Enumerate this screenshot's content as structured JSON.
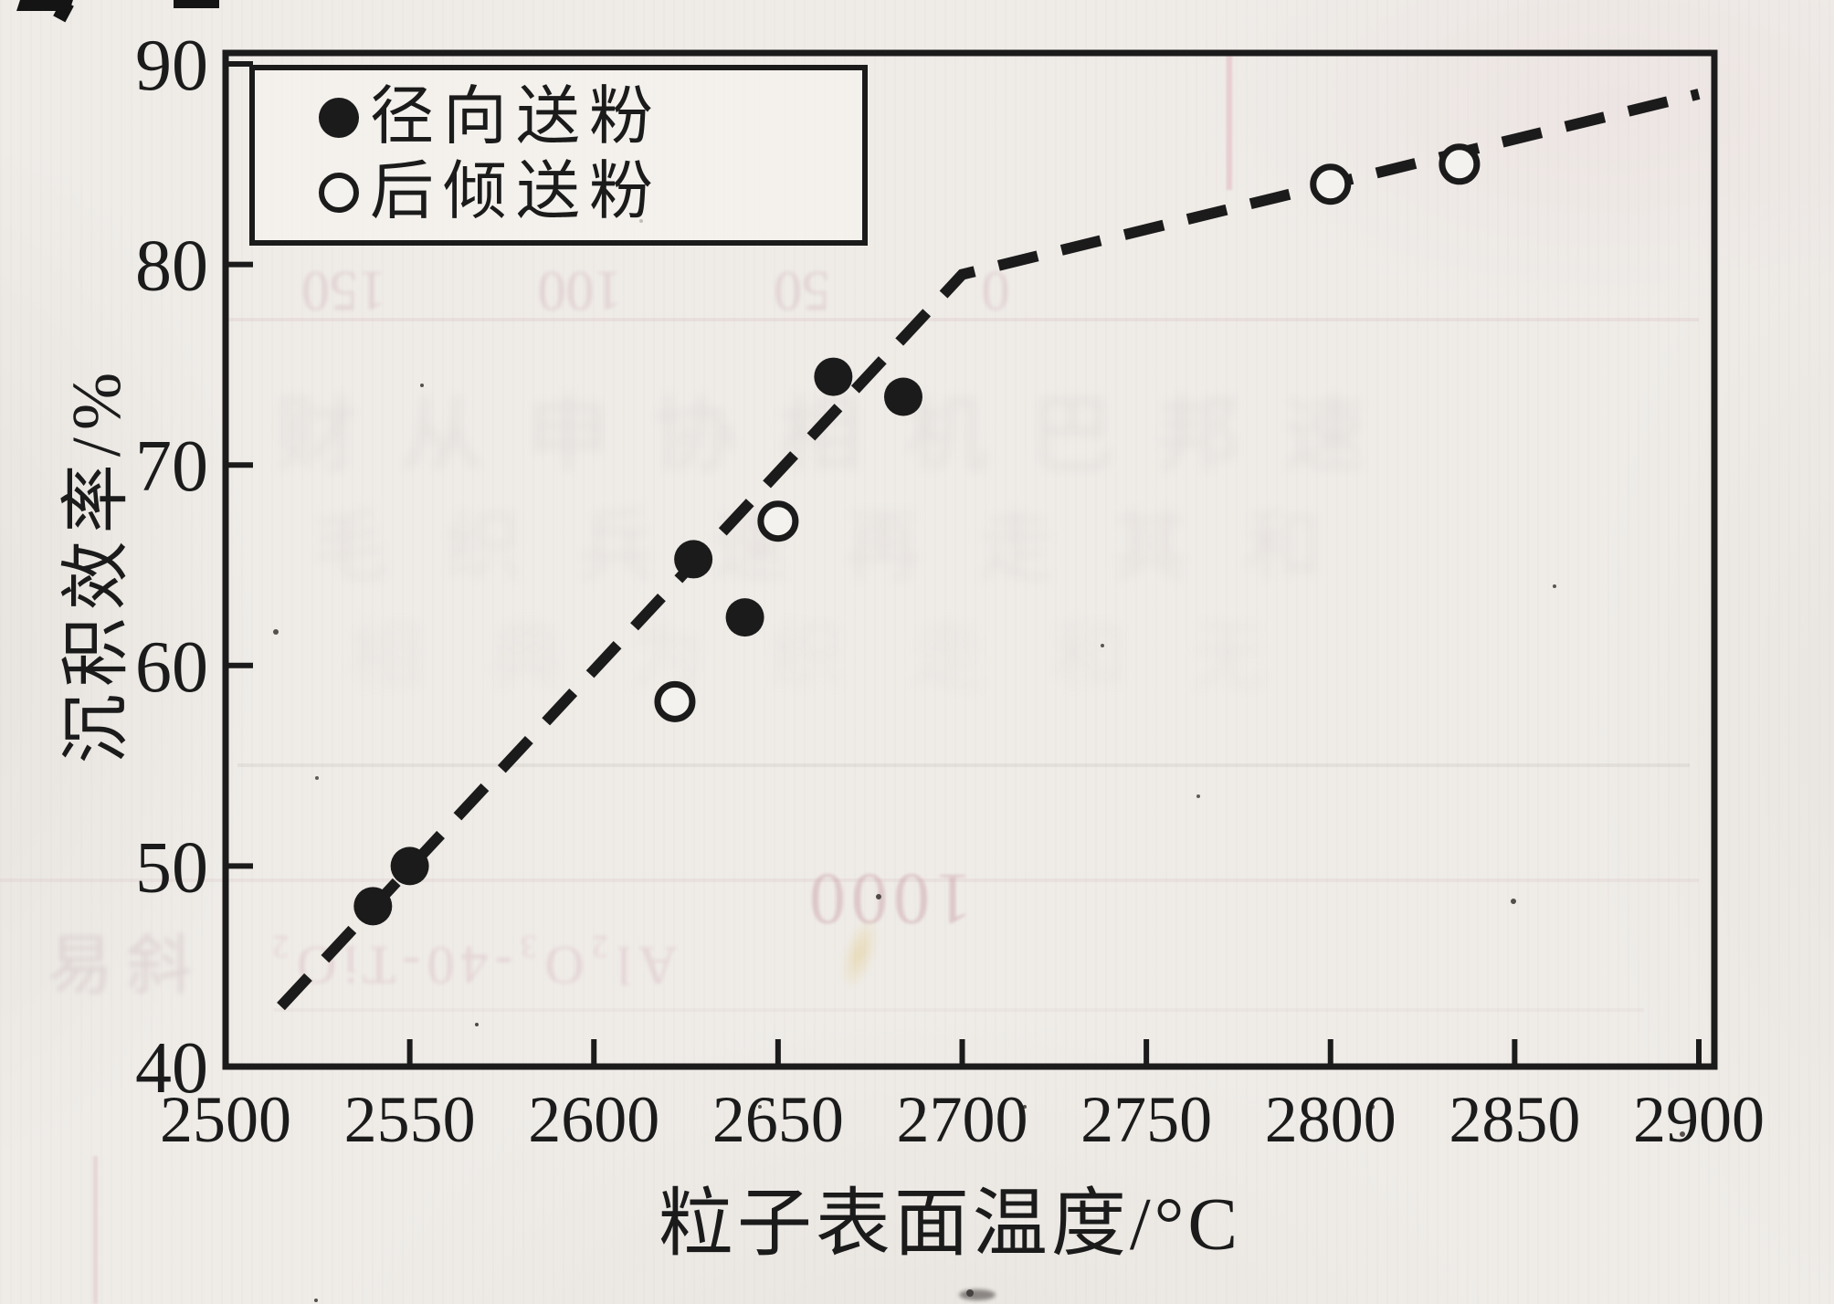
{
  "page": {
    "paper_color": "#efece8",
    "ink_color": "#1b1b1b",
    "plot_bg": "#f4f2ee"
  },
  "chart_data": {
    "type": "scatter",
    "title": "",
    "xlabel": "粒子表面温度/°C",
    "ylabel": "沉积效率/%",
    "xlim": [
      2500,
      2900
    ],
    "ylim": [
      40,
      90
    ],
    "xticks": [
      2500,
      2550,
      2600,
      2650,
      2700,
      2750,
      2800,
      2850,
      2900
    ],
    "yticks": [
      40,
      50,
      60,
      70,
      80,
      90
    ],
    "grid": false,
    "legend": {
      "position": "top-left",
      "entries": [
        {
          "label": "径向送粉",
          "marker": "filled-circle"
        },
        {
          "label": "后倾送粉",
          "marker": "open-circle"
        }
      ]
    },
    "series": [
      {
        "name": "径向送粉",
        "marker": "filled-circle",
        "points": [
          [
            2540,
            48
          ],
          [
            2550,
            50
          ],
          [
            2627,
            65.3
          ],
          [
            2641,
            62.4
          ],
          [
            2665,
            74.4
          ],
          [
            2684,
            73.4
          ]
        ]
      },
      {
        "name": "后倾送粉",
        "marker": "open-circle",
        "points": [
          [
            2622,
            58.2
          ],
          [
            2650,
            67.2
          ],
          [
            2800,
            84
          ],
          [
            2835,
            85
          ]
        ]
      }
    ],
    "trend_line": {
      "style": "dashed",
      "points": [
        [
          2515,
          43
        ],
        [
          2700,
          79.5
        ],
        [
          2900,
          88.5
        ]
      ]
    }
  },
  "artifacts": {
    "ghost_axis_row": "0 50 100 150",
    "ghost_number_1000": "1000",
    "ghost_formula": "Al₂O₃-40-TiO₂",
    "ghost_margin_glyphs": "易斜",
    "ghost_band_1": "财从申协相机巴邦速",
    "ghost_band_2": "毛织兵速再走其和",
    "ghost_band_3": "相典为织走和无"
  }
}
